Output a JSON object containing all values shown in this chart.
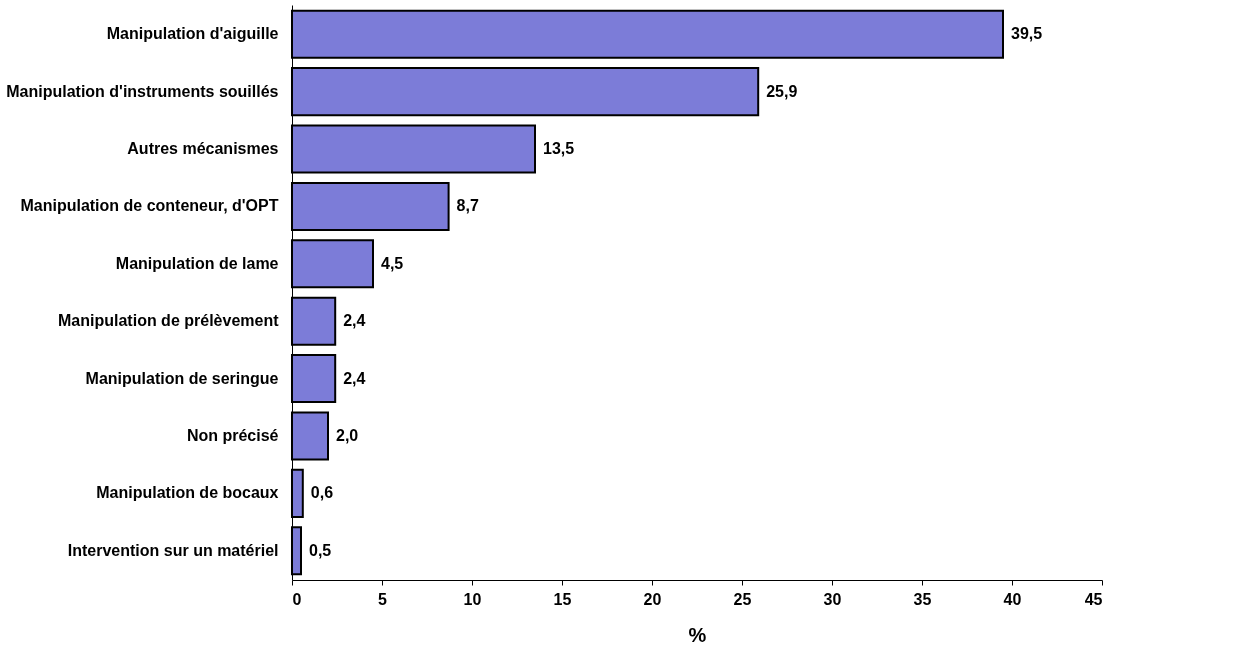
{
  "chart_data": {
    "type": "bar",
    "orientation": "horizontal",
    "xlabel": "%",
    "categories": [
      "Manipulation d'aiguille",
      "Manipulation d'instruments souillés",
      "Autres mécanismes",
      "Manipulation de conteneur, d'OPT",
      "Manipulation de lame",
      "Manipulation de prélèvement",
      "Manipulation de seringue",
      "Non précisé",
      "Manipulation de bocaux",
      "Intervention sur un matériel"
    ],
    "values": [
      39.5,
      25.9,
      13.5,
      8.7,
      4.5,
      2.4,
      2.4,
      2.0,
      0.6,
      0.5
    ],
    "value_labels": [
      "39,5",
      "25,9",
      "13,5",
      "8,7",
      "4,5",
      "2,4",
      "2,4",
      "2,0",
      "0,6",
      "0,5"
    ],
    "color": "#7c7cd8",
    "xlim": [
      0,
      45
    ],
    "xticks": [
      0,
      5,
      10,
      15,
      20,
      25,
      30,
      35,
      40,
      45
    ],
    "grid": false
  }
}
